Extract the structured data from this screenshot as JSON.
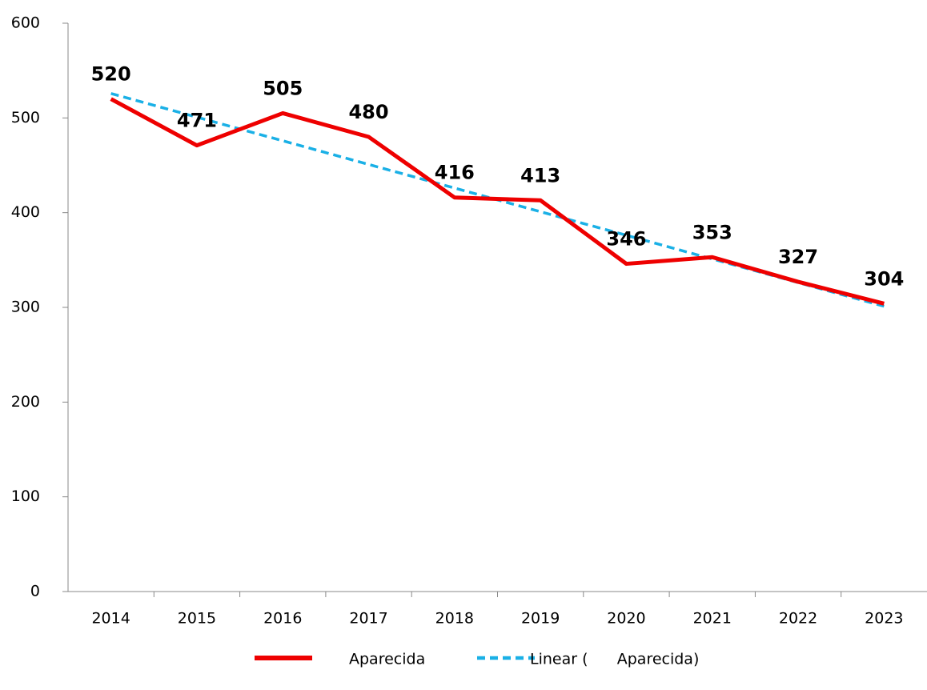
{
  "chart_data": {
    "type": "line",
    "categories": [
      "2014",
      "2015",
      "2016",
      "2017",
      "2018",
      "2019",
      "2020",
      "2021",
      "2022",
      "2023"
    ],
    "series": [
      {
        "name": "Aparecida",
        "color": "#ee0000",
        "values": [
          520,
          471,
          505,
          480,
          416,
          413,
          346,
          353,
          327,
          304
        ],
        "width": 5,
        "labels": true
      },
      {
        "name": "Linear (      Aparecida)",
        "color": "#1ab0e6",
        "values": [
          525.8,
          500.8,
          475.9,
          450.9,
          426.0,
          401.0,
          376.1,
          351.1,
          326.2,
          301.2
        ],
        "width": 3.5,
        "dashed": true
      }
    ],
    "ylim": [
      0,
      600
    ],
    "yticks": [
      0,
      100,
      200,
      300,
      400,
      500,
      600
    ],
    "grid": false,
    "legend": "bottom"
  }
}
